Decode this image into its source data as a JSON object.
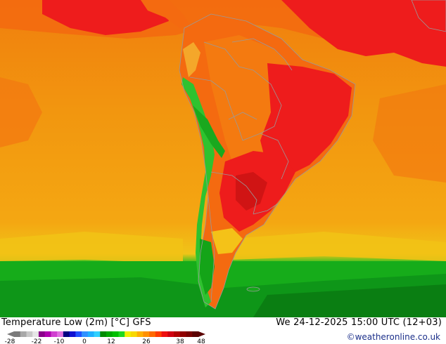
{
  "map": {
    "title": "Temperature Low (2m) [°C] GFS",
    "datetime": "We 24-12-2025 15:00 UTC (12+03)",
    "credit": "©weatheronline.co.uk",
    "colors": {
      "ocean_warm": "#f29a12",
      "ocean_hot": "#f08a10",
      "land_hot": "#ee1c1c",
      "land_warm": "#f46a10",
      "cool_green": "#19b419",
      "dark_green": "#0a8a14",
      "andes_green": "#3cc83c",
      "border": "#9a9a9a"
    }
  },
  "legend": {
    "tick_labels": [
      "-28",
      "-22",
      "-10",
      "0",
      "12",
      "26",
      "38",
      "48"
    ],
    "colors": [
      "#7a7a7a",
      "#a8a8a8",
      "#c8c8c8",
      "#e6e6e6",
      "#8a008a",
      "#b000b0",
      "#d040d0",
      "#e070e0",
      "#000080",
      "#1010d0",
      "#2050ff",
      "#3090ff",
      "#20b0ff",
      "#30d0ff",
      "#008c00",
      "#00a800",
      "#00c000",
      "#20d820",
      "#f0f000",
      "#f8d800",
      "#ffb000",
      "#ff9000",
      "#ff6a00",
      "#ff3c00",
      "#ee1010",
      "#d00010",
      "#b00000",
      "#900000",
      "#780000",
      "#5a0000"
    ]
  }
}
